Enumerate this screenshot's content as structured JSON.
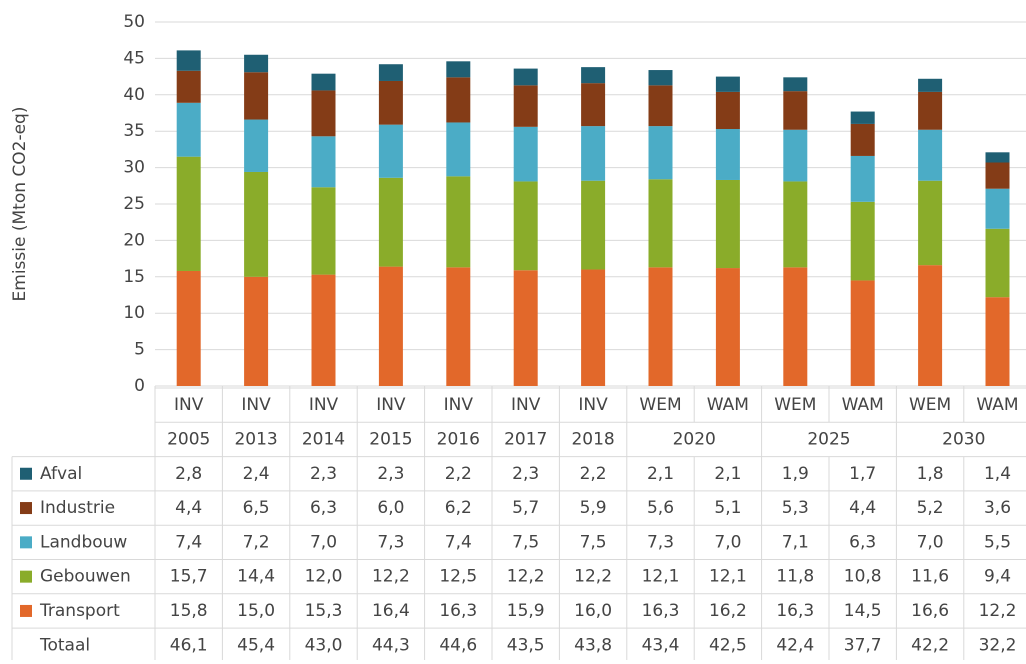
{
  "chart_data": {
    "type": "stacked-bar",
    "y_label": "Emissie (Mton CO2-eq)",
    "ylim": [
      0,
      50
    ],
    "yticks": [
      0,
      5,
      10,
      15,
      20,
      25,
      30,
      35,
      40,
      45,
      50
    ],
    "grid": true,
    "categories": [
      "INV",
      "INV",
      "INV",
      "INV",
      "INV",
      "INV",
      "INV",
      "WEM",
      "WAM",
      "WEM",
      "WAM",
      "WEM",
      "WAM"
    ],
    "category_groups": [
      {
        "label": "2005",
        "size": 1
      },
      {
        "label": "2013",
        "size": 1
      },
      {
        "label": "2014",
        "size": 1
      },
      {
        "label": "2015",
        "size": 1
      },
      {
        "label": "2016",
        "size": 1
      },
      {
        "label": "2017",
        "size": 1
      },
      {
        "label": "2018",
        "size": 1
      },
      {
        "label": "2020",
        "size": 2
      },
      {
        "label": "2025",
        "size": 2
      },
      {
        "label": "2030",
        "size": 2
      }
    ],
    "series": [
      {
        "name": "Afval",
        "color": "#1f5f73",
        "values": [
          2.8,
          2.4,
          2.3,
          2.3,
          2.2,
          2.3,
          2.2,
          2.1,
          2.1,
          1.9,
          1.7,
          1.8,
          1.4
        ],
        "value_labels": [
          "2,8",
          "2,4",
          "2,3",
          "2,3",
          "2,2",
          "2,3",
          "2,2",
          "2,1",
          "2,1",
          "1,9",
          "1,7",
          "1,8",
          "1,4"
        ]
      },
      {
        "name": "Industrie",
        "color": "#843c17",
        "values": [
          4.4,
          6.5,
          6.3,
          6.0,
          6.2,
          5.7,
          5.9,
          5.6,
          5.1,
          5.3,
          4.4,
          5.2,
          3.6
        ],
        "value_labels": [
          "4,4",
          "6,5",
          "6,3",
          "6,0",
          "6,2",
          "5,7",
          "5,9",
          "5,6",
          "5,1",
          "5,3",
          "4,4",
          "5,2",
          "3,6"
        ]
      },
      {
        "name": "Landbouw",
        "color": "#4bacc6",
        "values": [
          7.4,
          7.2,
          7.0,
          7.3,
          7.4,
          7.5,
          7.5,
          7.3,
          7.0,
          7.1,
          6.3,
          7.0,
          5.5
        ],
        "value_labels": [
          "7,4",
          "7,2",
          "7,0",
          "7,3",
          "7,4",
          "7,5",
          "7,5",
          "7,3",
          "7,0",
          "7,1",
          "6,3",
          "7,0",
          "5,5"
        ]
      },
      {
        "name": "Gebouwen",
        "color": "#8aac2a",
        "values": [
          15.7,
          14.4,
          12.0,
          12.2,
          12.5,
          12.2,
          12.2,
          12.1,
          12.1,
          11.8,
          10.8,
          11.6,
          9.4
        ],
        "value_labels": [
          "15,7",
          "14,4",
          "12,0",
          "12,2",
          "12,5",
          "12,2",
          "12,2",
          "12,1",
          "12,1",
          "11,8",
          "10,8",
          "11,6",
          "9,4"
        ]
      },
      {
        "name": "Transport",
        "color": "#e2682a",
        "values": [
          15.8,
          15.0,
          15.3,
          16.4,
          16.3,
          15.9,
          16.0,
          16.3,
          16.2,
          16.3,
          14.5,
          16.6,
          12.2
        ],
        "value_labels": [
          "15,8",
          "15,0",
          "15,3",
          "16,4",
          "16,3",
          "15,9",
          "16,0",
          "16,3",
          "16,2",
          "16,3",
          "14,5",
          "16,6",
          "12,2"
        ]
      }
    ],
    "total_name": "Totaal",
    "totals": [
      46.1,
      45.4,
      43.0,
      44.3,
      44.6,
      43.5,
      43.8,
      43.4,
      42.5,
      42.4,
      37.7,
      42.2,
      32.2
    ],
    "total_labels": [
      "46,1",
      "45,4",
      "43,0",
      "44,3",
      "44,6",
      "43,5",
      "43,8",
      "43,4",
      "42,5",
      "42,4",
      "37,7",
      "42,2",
      "32,2"
    ]
  }
}
